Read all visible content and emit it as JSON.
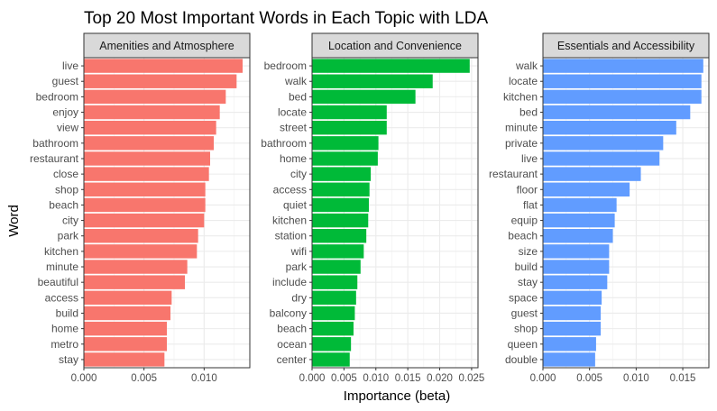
{
  "chart_data": {
    "type": "bar",
    "orientation": "horizontal",
    "title": "Top 20 Most Important Words in Each Topic with LDA",
    "xlabel": "Importance (beta)",
    "ylabel": "Word",
    "grid": true,
    "legend": "none",
    "panels": [
      {
        "name": "Amenities and Atmosphere",
        "color": "#f8766d",
        "xlim": [
          0,
          0.0138
        ],
        "xticks": [
          0,
          0.005,
          0.01
        ],
        "xtick_labels": [
          "0.000",
          "0.005",
          "0.010"
        ],
        "categories": [
          "live",
          "guest",
          "bedroom",
          "enjoy",
          "view",
          "bathroom",
          "restaurant",
          "close",
          "shop",
          "beach",
          "city",
          "park",
          "kitchen",
          "minute",
          "beautiful",
          "access",
          "build",
          "home",
          "metro",
          "stay"
        ],
        "values": [
          0.0132,
          0.0127,
          0.0118,
          0.0113,
          0.011,
          0.0108,
          0.0105,
          0.0104,
          0.0101,
          0.0101,
          0.01,
          0.0095,
          0.0094,
          0.0086,
          0.0084,
          0.0073,
          0.0072,
          0.0069,
          0.0069,
          0.0067
        ]
      },
      {
        "name": "Location and Convenience",
        "color": "#00ba38",
        "xlim": [
          0,
          0.026
        ],
        "xticks": [
          0,
          0.005,
          0.01,
          0.015,
          0.02,
          0.025
        ],
        "xtick_labels": [
          "0.000",
          "0.005",
          "0.010",
          "0.015",
          "0.020",
          "0.025"
        ],
        "categories": [
          "bedroom",
          "walk",
          "bed",
          "locate",
          "street",
          "bathroom",
          "home",
          "city",
          "access",
          "quiet",
          "kitchen",
          "station",
          "wifi",
          "park",
          "include",
          "dry",
          "balcony",
          "beach",
          "ocean",
          "center"
        ],
        "values": [
          0.0247,
          0.0189,
          0.0162,
          0.0117,
          0.0117,
          0.0104,
          0.0103,
          0.0092,
          0.009,
          0.0089,
          0.0088,
          0.0085,
          0.0081,
          0.0076,
          0.0071,
          0.0069,
          0.0067,
          0.0065,
          0.0061,
          0.0059
        ]
      },
      {
        "name": "Essentials and Accessibility",
        "color": "#619cff",
        "xlim": [
          0,
          0.0178
        ],
        "xticks": [
          0,
          0.005,
          0.01,
          0.015
        ],
        "xtick_labels": [
          "0.000",
          "0.005",
          "0.010",
          "0.015"
        ],
        "categories": [
          "walk",
          "locate",
          "kitchen",
          "bed",
          "minute",
          "private",
          "live",
          "restaurant",
          "floor",
          "flat",
          "equip",
          "beach",
          "size",
          "build",
          "stay",
          "space",
          "guest",
          "shop",
          "queen",
          "double"
        ],
        "values": [
          0.0172,
          0.017,
          0.017,
          0.0158,
          0.0143,
          0.0129,
          0.0125,
          0.0105,
          0.0093,
          0.0079,
          0.0077,
          0.0075,
          0.0071,
          0.0071,
          0.0069,
          0.0063,
          0.0062,
          0.0062,
          0.0057,
          0.0056
        ]
      }
    ]
  }
}
